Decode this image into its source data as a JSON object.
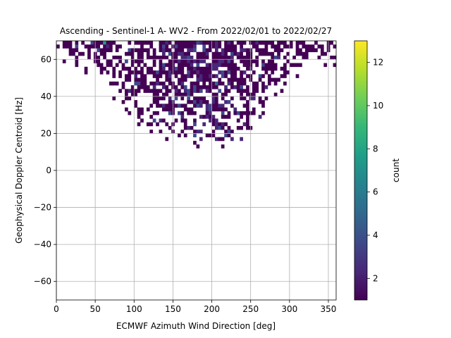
{
  "chart_data": {
    "type": "heatmap",
    "title": "Ascending - Sentinel-1 A- WV2 - From 2022/02/01 to 2022/02/27",
    "xlabel": "ECMWF Azimuth Wind Direction [deg]",
    "ylabel": "Geophysical Doppler Centroid [Hz]",
    "xlim": [
      0,
      360
    ],
    "ylim": [
      -70,
      70
    ],
    "xticks": [
      0,
      50,
      100,
      150,
      200,
      250,
      300,
      350
    ],
    "yticks": [
      -60,
      -40,
      -20,
      0,
      20,
      40,
      60
    ],
    "grid": true,
    "bin_size": {
      "x": 4,
      "y": 2
    },
    "colorbar": {
      "label": "count",
      "colormap": "viridis",
      "range": [
        1,
        13
      ],
      "ticks": [
        2,
        4,
        6,
        8,
        10,
        12
      ]
    },
    "colors": {
      "viridis": [
        "#440154",
        "#482878",
        "#3e4989",
        "#31688e",
        "#26828e",
        "#1f9e89",
        "#35b779",
        "#6ece58",
        "#b5de2b",
        "#fde725"
      ],
      "grid": "#b0b0b0"
    },
    "density_profile": {
      "description_free_note": "",
      "x_bins_deg": [
        0,
        20,
        40,
        60,
        80,
        100,
        120,
        140,
        160,
        180,
        200,
        220,
        240,
        260,
        280,
        300,
        320,
        340,
        360
      ],
      "y_lower_edge_hz": [
        62,
        56,
        52,
        46,
        38,
        30,
        22,
        16,
        18,
        16,
        16,
        16,
        20,
        30,
        40,
        50,
        56,
        58,
        60
      ]
    },
    "notable_bins": [
      {
        "x": 62,
        "y": 69,
        "value": 7
      },
      {
        "x": 180,
        "y": 57,
        "value": 4
      },
      {
        "x": 206,
        "y": 47,
        "value": 5
      },
      {
        "x": 210,
        "y": 43,
        "value": 4
      },
      {
        "x": 222,
        "y": 37,
        "value": 4
      },
      {
        "x": 214,
        "y": 53,
        "value": 4
      },
      {
        "x": 238,
        "y": 45,
        "value": 3
      },
      {
        "x": 170,
        "y": 43,
        "value": 3
      },
      {
        "x": 198,
        "y": 33,
        "value": 3
      },
      {
        "x": 226,
        "y": 63,
        "value": 3
      }
    ]
  }
}
